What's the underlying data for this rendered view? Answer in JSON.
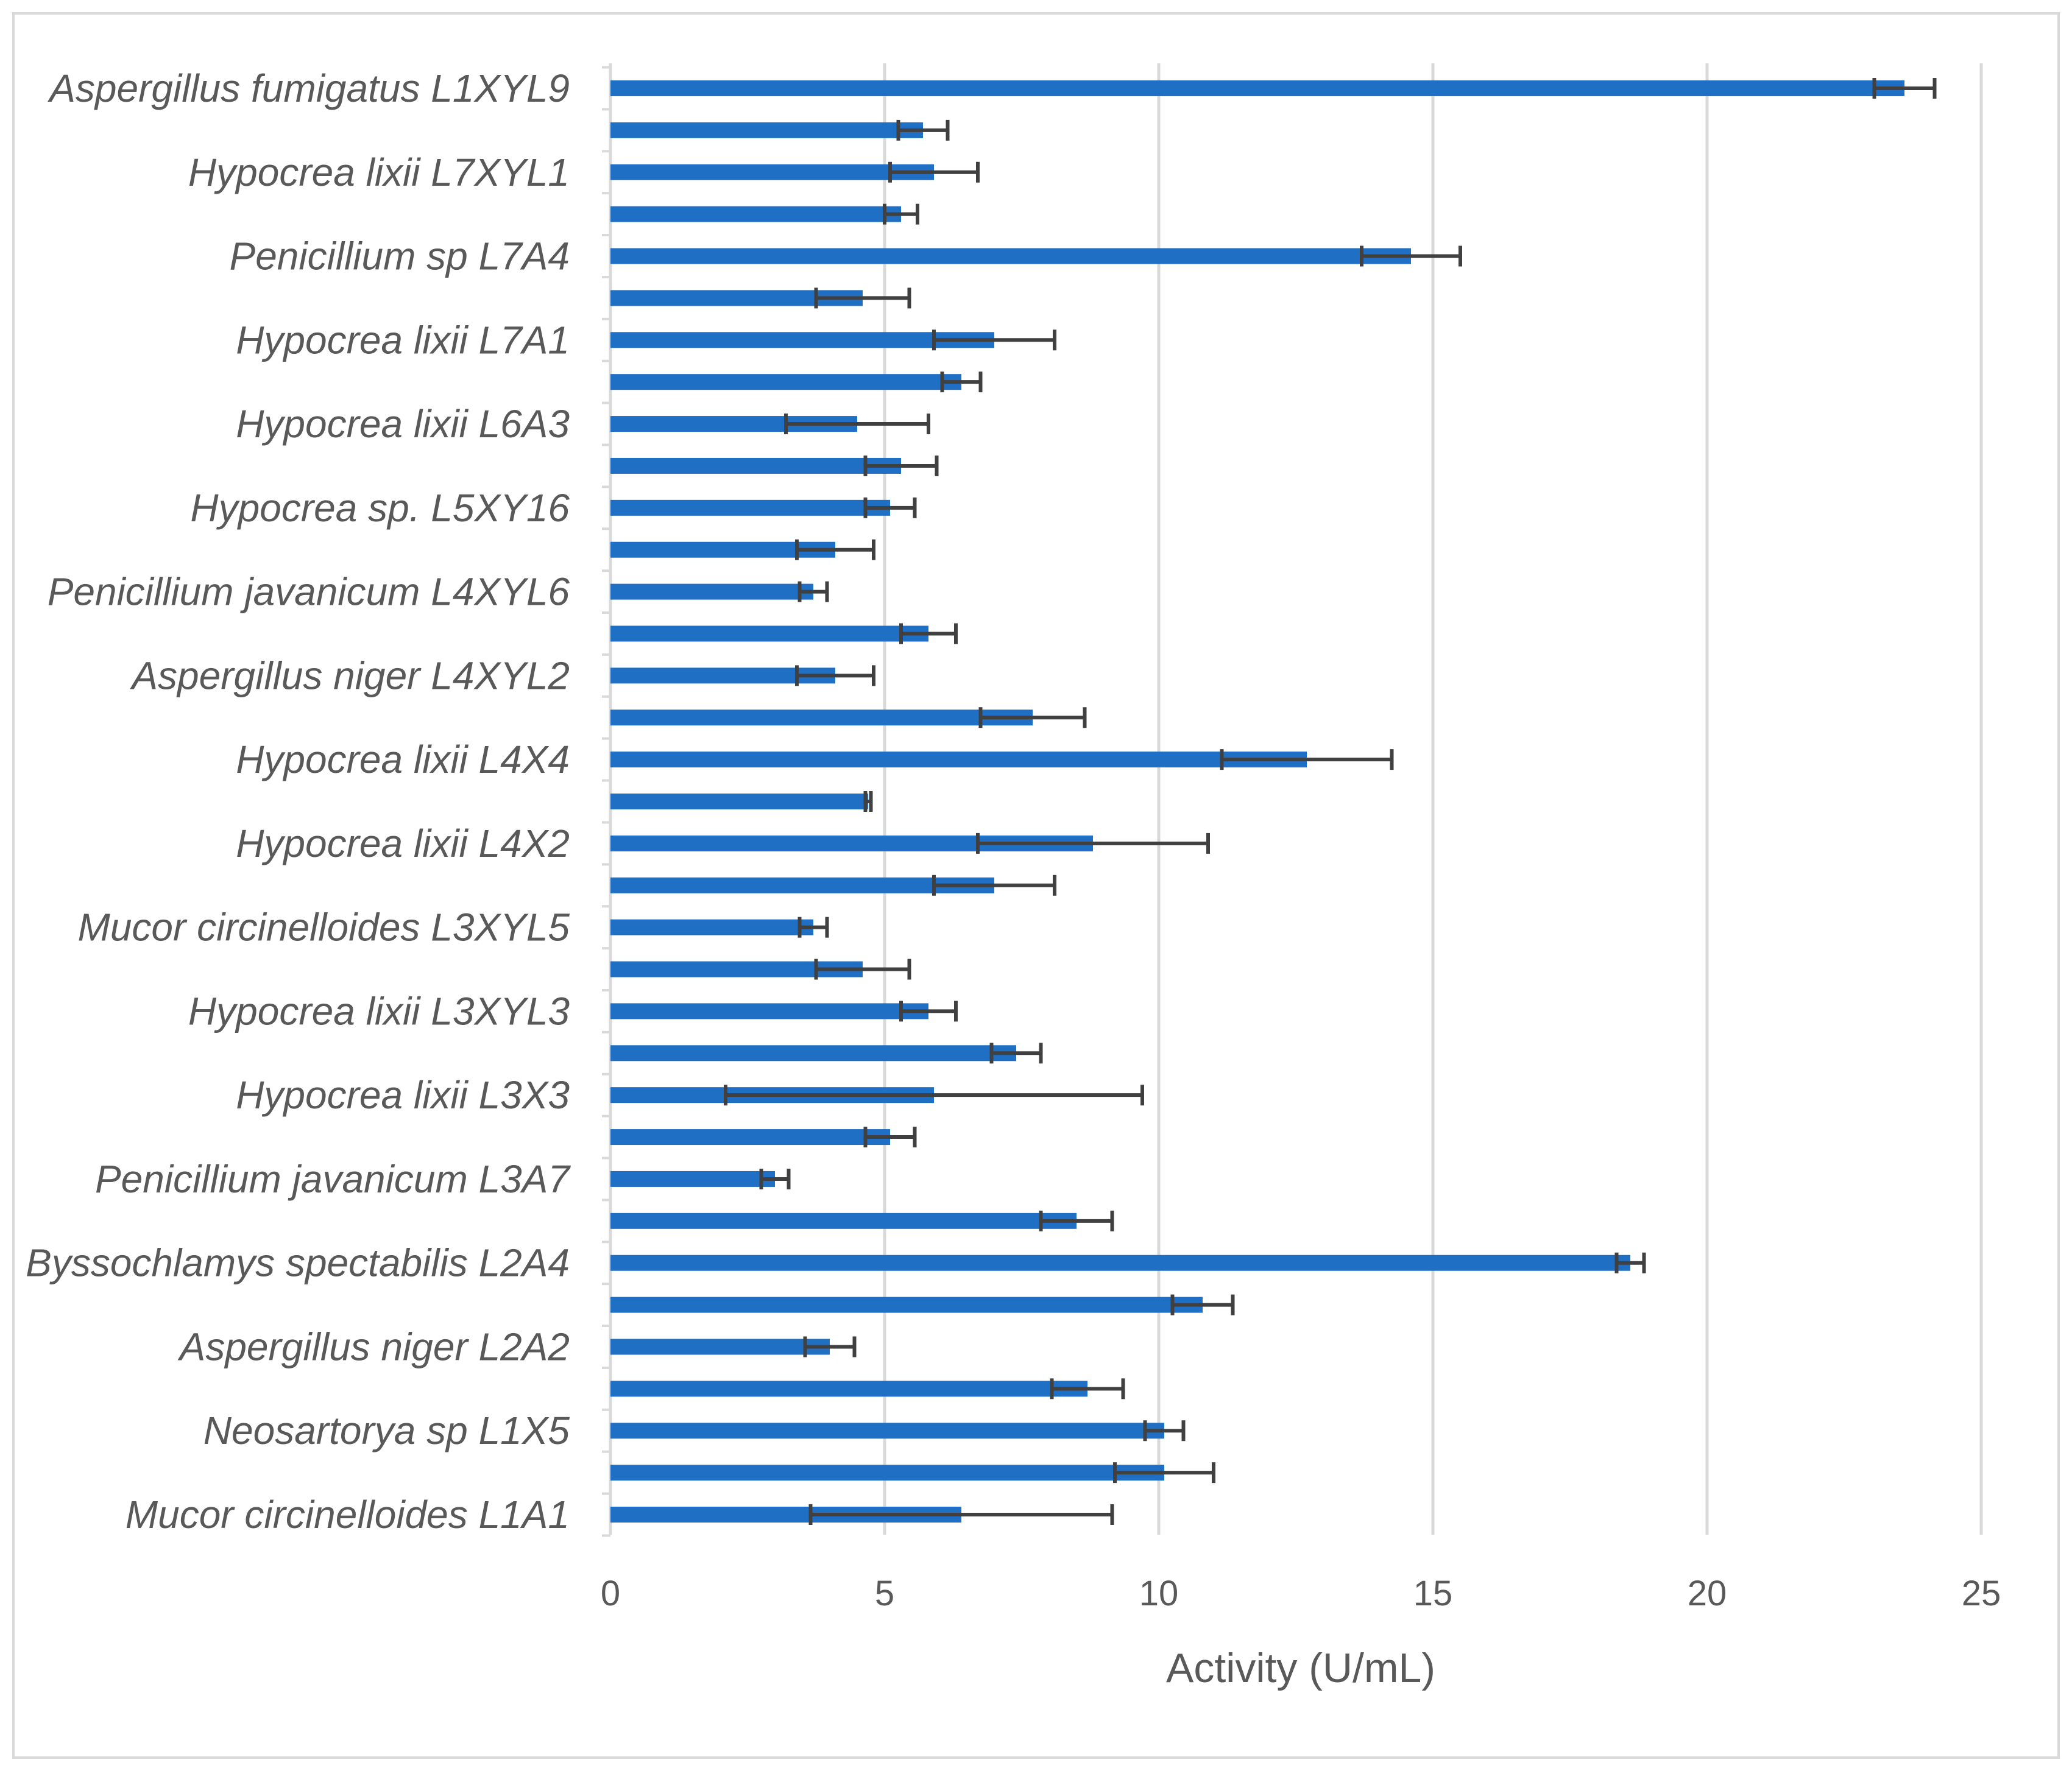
{
  "chart_data": {
    "type": "bar",
    "orientation": "horizontal",
    "title": "",
    "xlabel": "Activity (U/mL)",
    "ylabel": "",
    "xlim": [
      0,
      25
    ],
    "xticks": [
      0,
      5,
      10,
      15,
      20,
      25
    ],
    "grid": "vertical",
    "legend": "none",
    "bar_color": "#1f6fc4",
    "grid_color": "#d9d9d9",
    "error_color": "#404040",
    "categories": [
      {
        "label": "Aspergillus fumigatus L1XYL9",
        "value": 23.6,
        "error": 0.55
      },
      {
        "label": "",
        "value": 5.7,
        "error": 0.45
      },
      {
        "label": "Hypocrea lixii L7XYL1",
        "value": 5.9,
        "error": 0.8
      },
      {
        "label": "",
        "value": 5.3,
        "error": 0.3
      },
      {
        "label": "Penicillium sp L7A4",
        "value": 14.6,
        "error": 0.9
      },
      {
        "label": "",
        "value": 4.6,
        "error": 0.85
      },
      {
        "label": "Hypocrea lixii L7A1",
        "value": 7.0,
        "error": 1.1
      },
      {
        "label": "",
        "value": 6.4,
        "error": 0.35
      },
      {
        "label": "Hypocrea lixii L6A3",
        "value": 4.5,
        "error": 1.3
      },
      {
        "label": "",
        "value": 5.3,
        "error": 0.65
      },
      {
        "label": "Hypocrea sp. L5XY16",
        "value": 5.1,
        "error": 0.45
      },
      {
        "label": "",
        "value": 4.1,
        "error": 0.7
      },
      {
        "label": "Penicillium javanicum L4XYL6",
        "value": 3.7,
        "error": 0.25
      },
      {
        "label": "",
        "value": 5.8,
        "error": 0.5
      },
      {
        "label": "Aspergillus niger L4XYL2",
        "value": 4.1,
        "error": 0.7
      },
      {
        "label": "",
        "value": 7.7,
        "error": 0.95
      },
      {
        "label": "Hypocrea lixii L4X4",
        "value": 12.7,
        "error": 1.55
      },
      {
        "label": "",
        "value": 4.7,
        "error": 0.05
      },
      {
        "label": "Hypocrea lixii L4X2",
        "value": 8.8,
        "error": 2.1
      },
      {
        "label": "",
        "value": 7.0,
        "error": 1.1
      },
      {
        "label": "Mucor circinelloides L3XYL5",
        "value": 3.7,
        "error": 0.25
      },
      {
        "label": "",
        "value": 4.6,
        "error": 0.85
      },
      {
        "label": "Hypocrea lixii L3XYL3",
        "value": 5.8,
        "error": 0.5
      },
      {
        "label": "",
        "value": 7.4,
        "error": 0.45
      },
      {
        "label": "Hypocrea lixii L3X3",
        "value": 5.9,
        "error": 3.8
      },
      {
        "label": "",
        "value": 5.1,
        "error": 0.45
      },
      {
        "label": "Penicillium javanicum L3A7",
        "value": 3.0,
        "error": 0.25
      },
      {
        "label": "",
        "value": 8.5,
        "error": 0.65
      },
      {
        "label": "Byssochlamys spectabilis L2A4",
        "value": 18.6,
        "error": 0.25
      },
      {
        "label": "",
        "value": 10.8,
        "error": 0.55
      },
      {
        "label": "Aspergillus niger L2A2",
        "value": 4.0,
        "error": 0.45
      },
      {
        "label": "",
        "value": 8.7,
        "error": 0.65
      },
      {
        "label": "Neosartorya sp L1X5",
        "value": 10.1,
        "error": 0.35
      },
      {
        "label": "",
        "value": 10.1,
        "error": 0.9
      },
      {
        "label": "Mucor circinelloides L1A1",
        "value": 6.4,
        "error": 2.75
      }
    ]
  }
}
